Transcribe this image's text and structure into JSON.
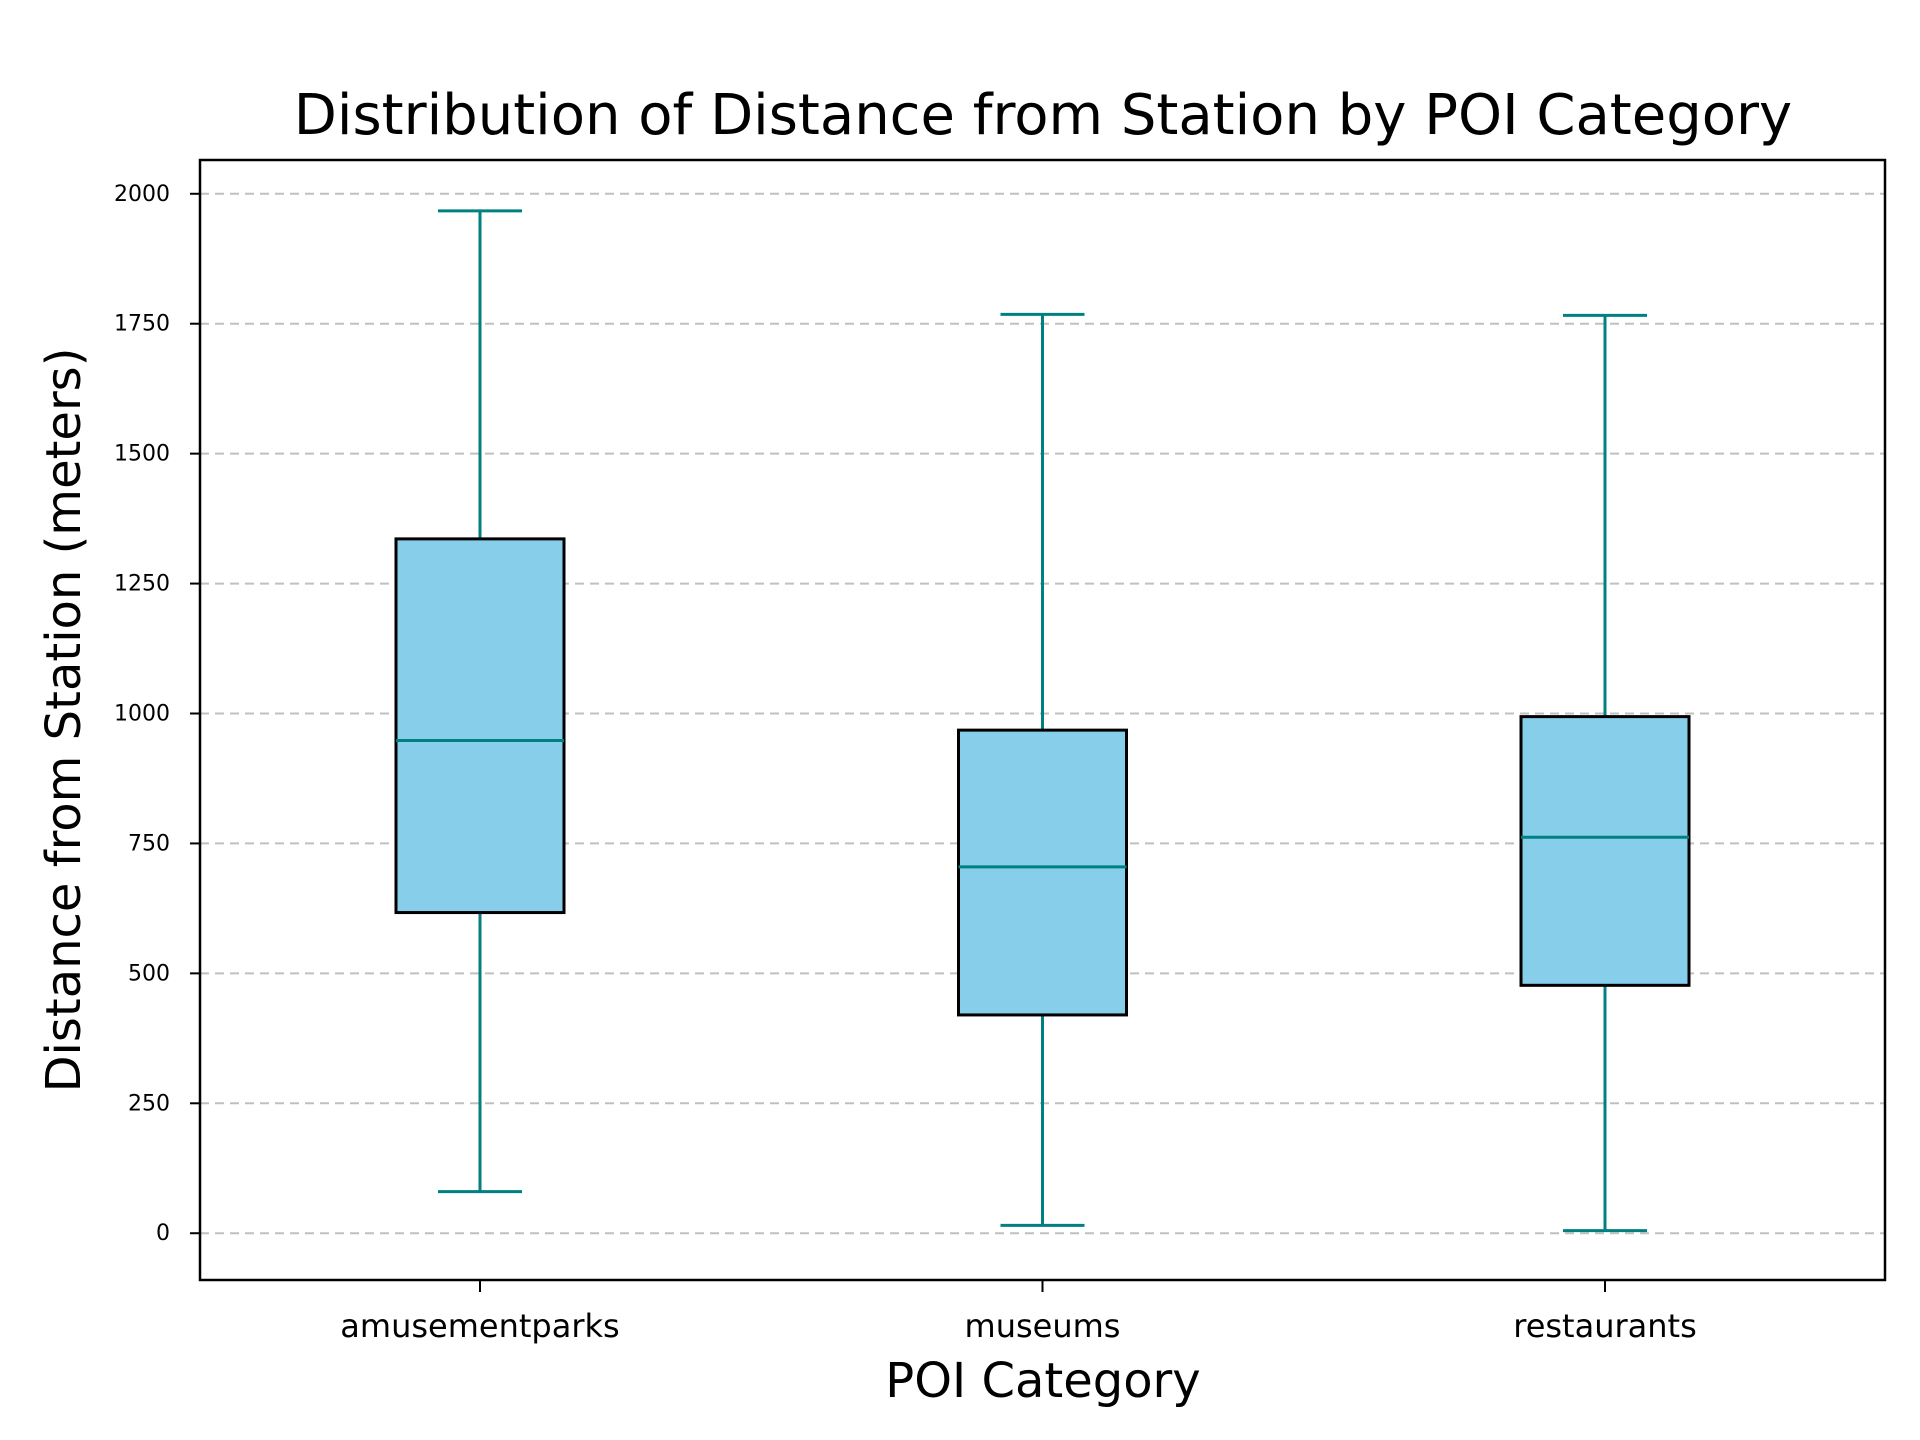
{
  "chart_data": {
    "type": "box",
    "title": "Distribution of Distance from Station by POI Category",
    "xlabel": "POI Category",
    "ylabel": "Distance from Station (meters)",
    "categories": [
      "amusementparks",
      "museums",
      "restaurants"
    ],
    "boxes": [
      {
        "category": "amusementparks",
        "whisker_low": 80,
        "q1": 617,
        "median": 948,
        "q3": 1336,
        "whisker_high": 1967
      },
      {
        "category": "museums",
        "whisker_low": 15,
        "q1": 420,
        "median": 705,
        "q3": 968,
        "whisker_high": 1768
      },
      {
        "category": "restaurants",
        "whisker_low": 5,
        "q1": 477,
        "median": 762,
        "q3": 994,
        "whisker_high": 1766
      }
    ],
    "ylim": [
      -90,
      2065
    ],
    "yticks": [
      0,
      250,
      500,
      750,
      1000,
      1250,
      1500,
      1750,
      2000
    ],
    "ytick_labels": [
      "0",
      "250",
      "500",
      "750",
      "1000",
      "1250",
      "1500",
      "1750",
      "2000"
    ],
    "grid": {
      "axis": "y",
      "style": "dashed",
      "enabled": true
    },
    "colors": {
      "box_fill": "#87ceeb",
      "box_edge": "#000000",
      "median": "#008080",
      "whisker": "#008080",
      "cap": "#008080",
      "grid": "#c0c0c0"
    }
  }
}
